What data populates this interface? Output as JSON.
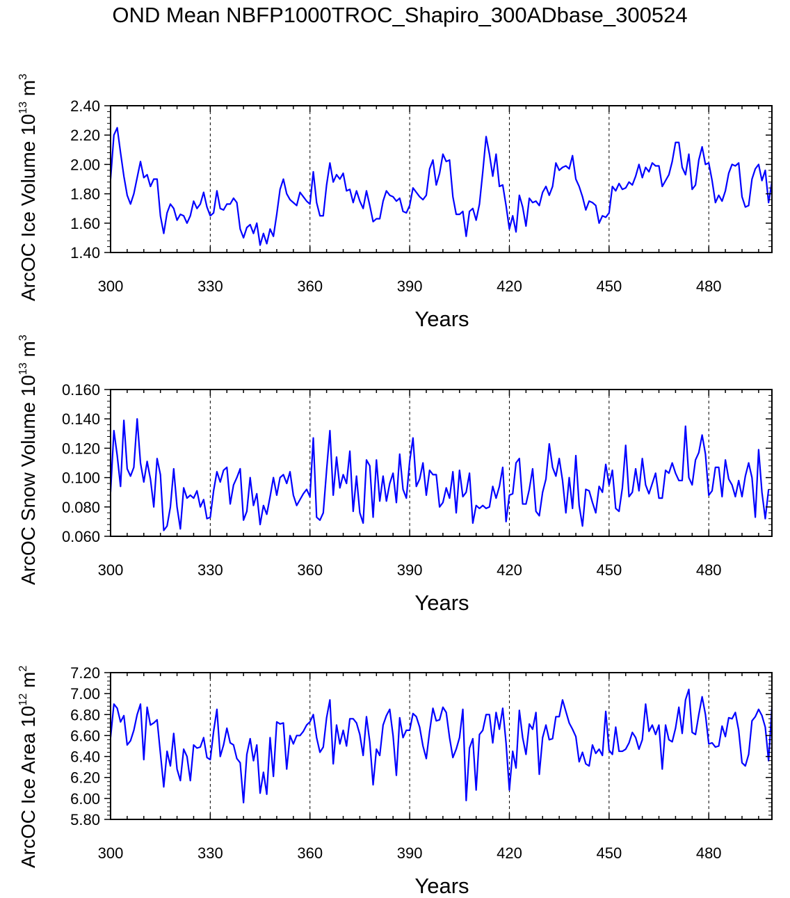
{
  "title": "OND Mean NBFP1000TROC_Shapiro_300ADbase_300524",
  "line_color": "#0000ff",
  "chart_data": [
    {
      "type": "line",
      "name": "ice-volume",
      "ylabel_main": "ArcOC Ice Volume 10",
      "ylabel_exp": "13",
      "ylabel_unit": " m",
      "ylabel_unit_exp": "3",
      "xlabel": "Years",
      "xlim": [
        300,
        499
      ],
      "ylim": [
        1.4,
        2.4
      ],
      "xticks": [
        "300",
        "330",
        "360",
        "390",
        "420",
        "450",
        "480"
      ],
      "yticks": [
        "1.40",
        "1.60",
        "1.80",
        "2.00",
        "2.20",
        "2.40"
      ],
      "x_start": 300,
      "values": [
        1.9,
        2.2,
        2.25,
        2.08,
        1.92,
        1.79,
        1.73,
        1.8,
        1.91,
        2.02,
        1.91,
        1.93,
        1.85,
        1.9,
        1.9,
        1.65,
        1.53,
        1.67,
        1.73,
        1.7,
        1.62,
        1.66,
        1.65,
        1.6,
        1.65,
        1.75,
        1.7,
        1.73,
        1.81,
        1.71,
        1.65,
        1.67,
        1.82,
        1.7,
        1.69,
        1.73,
        1.73,
        1.77,
        1.74,
        1.56,
        1.5,
        1.57,
        1.59,
        1.53,
        1.6,
        1.45,
        1.53,
        1.46,
        1.56,
        1.51,
        1.66,
        1.83,
        1.9,
        1.8,
        1.76,
        1.74,
        1.72,
        1.81,
        1.78,
        1.75,
        1.73,
        1.95,
        1.74,
        1.65,
        1.65,
        1.86,
        2.01,
        1.88,
        1.93,
        1.9,
        1.94,
        1.82,
        1.83,
        1.74,
        1.82,
        1.75,
        1.7,
        1.82,
        1.72,
        1.61,
        1.63,
        1.63,
        1.75,
        1.82,
        1.79,
        1.78,
        1.75,
        1.77,
        1.68,
        1.67,
        1.72,
        1.84,
        1.81,
        1.78,
        1.76,
        1.79,
        1.97,
        2.03,
        1.86,
        1.94,
        2.07,
        2.02,
        2.03,
        1.78,
        1.66,
        1.66,
        1.68,
        1.51,
        1.68,
        1.7,
        1.62,
        1.73,
        1.95,
        2.19,
        2.07,
        1.92,
        2.07,
        1.85,
        1.86,
        1.72,
        1.56,
        1.65,
        1.54,
        1.79,
        1.71,
        1.58,
        1.77,
        1.74,
        1.75,
        1.72,
        1.81,
        1.85,
        1.79,
        1.85,
        2.01,
        1.96,
        1.98,
        1.99,
        1.97,
        2.06,
        1.9,
        1.85,
        1.78,
        1.69,
        1.75,
        1.74,
        1.72,
        1.6,
        1.65,
        1.64,
        1.67,
        1.85,
        1.82,
        1.87,
        1.83,
        1.84,
        1.88,
        1.86,
        1.92,
        2.0,
        1.91,
        1.98,
        1.95,
        2.01,
        1.99,
        1.99,
        1.85,
        1.89,
        1.93,
        2.02,
        2.15,
        2.15,
        1.98,
        1.93,
        2.07,
        1.83,
        1.86,
        2.03,
        2.12,
        2.0,
        2.01,
        1.89,
        1.74,
        1.79,
        1.75,
        1.82,
        1.94,
        2.0,
        1.99,
        2.01,
        1.78,
        1.71,
        1.72,
        1.9,
        1.97,
        2.0,
        1.89,
        1.96,
        1.74,
        1.88
      ]
    },
    {
      "type": "line",
      "name": "snow-volume",
      "ylabel_main": "ArcOC Snow Volume 10",
      "ylabel_exp": "13",
      "ylabel_unit": " m",
      "ylabel_unit_exp": "3",
      "xlabel": "Years",
      "xlim": [
        300,
        499
      ],
      "ylim": [
        0.06,
        0.16
      ],
      "xticks": [
        "300",
        "330",
        "360",
        "390",
        "420",
        "450",
        "480"
      ],
      "yticks": [
        "0.060",
        "0.080",
        "0.100",
        "0.120",
        "0.140",
        "0.160"
      ],
      "x_start": 300,
      "values": [
        0.09,
        0.132,
        0.115,
        0.094,
        0.139,
        0.106,
        0.101,
        0.107,
        0.14,
        0.11,
        0.097,
        0.111,
        0.099,
        0.08,
        0.113,
        0.102,
        0.064,
        0.067,
        0.08,
        0.106,
        0.08,
        0.065,
        0.093,
        0.086,
        0.088,
        0.086,
        0.091,
        0.08,
        0.085,
        0.072,
        0.073,
        0.091,
        0.104,
        0.097,
        0.105,
        0.107,
        0.082,
        0.095,
        0.1,
        0.106,
        0.071,
        0.077,
        0.1,
        0.081,
        0.089,
        0.068,
        0.081,
        0.075,
        0.087,
        0.1,
        0.088,
        0.1,
        0.102,
        0.096,
        0.104,
        0.088,
        0.081,
        0.085,
        0.089,
        0.092,
        0.087,
        0.127,
        0.073,
        0.071,
        0.076,
        0.105,
        0.132,
        0.088,
        0.114,
        0.093,
        0.102,
        0.096,
        0.118,
        0.077,
        0.101,
        0.076,
        0.069,
        0.112,
        0.108,
        0.073,
        0.112,
        0.084,
        0.101,
        0.084,
        0.096,
        0.103,
        0.083,
        0.116,
        0.092,
        0.086,
        0.111,
        0.127,
        0.094,
        0.099,
        0.11,
        0.088,
        0.105,
        0.102,
        0.102,
        0.08,
        0.083,
        0.093,
        0.086,
        0.104,
        0.076,
        0.105,
        0.087,
        0.09,
        0.103,
        0.069,
        0.081,
        0.079,
        0.081,
        0.079,
        0.08,
        0.094,
        0.086,
        0.094,
        0.107,
        0.07,
        0.088,
        0.089,
        0.11,
        0.113,
        0.082,
        0.082,
        0.092,
        0.106,
        0.077,
        0.074,
        0.09,
        0.099,
        0.123,
        0.107,
        0.101,
        0.113,
        0.098,
        0.076,
        0.1,
        0.079,
        0.115,
        0.081,
        0.067,
        0.092,
        0.091,
        0.083,
        0.076,
        0.094,
        0.09,
        0.109,
        0.095,
        0.105,
        0.079,
        0.077,
        0.093,
        0.122,
        0.087,
        0.09,
        0.106,
        0.091,
        0.113,
        0.095,
        0.089,
        0.096,
        0.103,
        0.086,
        0.086,
        0.105,
        0.103,
        0.11,
        0.103,
        0.098,
        0.098,
        0.135,
        0.1,
        0.095,
        0.112,
        0.117,
        0.129,
        0.116,
        0.088,
        0.091,
        0.107,
        0.107,
        0.087,
        0.112,
        0.099,
        0.095,
        0.087,
        0.098,
        0.087,
        0.101,
        0.11,
        0.1,
        0.073,
        0.119,
        0.09,
        0.072,
        0.092
      ]
    },
    {
      "type": "line",
      "name": "ice-area",
      "ylabel_main": "ArcOC Ice Area 10",
      "ylabel_exp": "12",
      "ylabel_unit": " m",
      "ylabel_unit_exp": "2",
      "xlabel": "Years",
      "xlim": [
        300,
        499
      ],
      "ylim": [
        5.8,
        7.2
      ],
      "xticks": [
        "300",
        "330",
        "360",
        "390",
        "420",
        "450",
        "480"
      ],
      "yticks": [
        "5.80",
        "6.00",
        "6.20",
        "6.40",
        "6.60",
        "6.80",
        "7.00",
        "7.20"
      ],
      "x_start": 300,
      "values": [
        6.58,
        6.9,
        6.86,
        6.73,
        6.79,
        6.51,
        6.55,
        6.65,
        6.8,
        6.9,
        6.37,
        6.87,
        6.7,
        6.72,
        6.75,
        6.43,
        6.11,
        6.45,
        6.31,
        6.62,
        6.28,
        6.17,
        6.47,
        6.4,
        6.17,
        6.51,
        6.48,
        6.49,
        6.58,
        6.39,
        6.37,
        6.64,
        6.85,
        6.4,
        6.51,
        6.67,
        6.53,
        6.51,
        6.38,
        6.34,
        5.96,
        6.42,
        6.57,
        6.36,
        6.51,
        6.05,
        6.25,
        6.04,
        6.58,
        6.21,
        6.73,
        6.71,
        6.72,
        6.28,
        6.6,
        6.52,
        6.6,
        6.6,
        6.64,
        6.7,
        6.73,
        6.8,
        6.58,
        6.44,
        6.49,
        6.77,
        6.94,
        6.33,
        6.7,
        6.52,
        6.65,
        6.5,
        6.76,
        6.76,
        6.72,
        6.61,
        6.41,
        6.78,
        6.54,
        6.13,
        6.47,
        6.41,
        6.7,
        6.79,
        6.85,
        6.6,
        6.22,
        6.77,
        6.58,
        6.65,
        6.65,
        6.81,
        6.78,
        6.68,
        6.5,
        6.38,
        6.64,
        6.86,
        6.74,
        6.75,
        6.87,
        6.82,
        6.58,
        6.39,
        6.47,
        6.58,
        6.85,
        5.98,
        6.48,
        6.57,
        6.08,
        6.61,
        6.65,
        6.8,
        6.8,
        6.53,
        6.82,
        6.66,
        6.86,
        6.53,
        6.08,
        6.45,
        6.29,
        6.84,
        6.58,
        6.42,
        6.71,
        6.66,
        6.82,
        6.23,
        6.58,
        6.7,
        6.56,
        6.57,
        6.78,
        6.78,
        6.94,
        6.83,
        6.72,
        6.66,
        6.59,
        6.35,
        6.44,
        6.33,
        6.31,
        6.51,
        6.43,
        6.47,
        6.41,
        6.83,
        6.46,
        6.42,
        6.68,
        6.45,
        6.45,
        6.47,
        6.53,
        6.63,
        6.58,
        6.47,
        6.56,
        6.9,
        6.64,
        6.7,
        6.61,
        6.7,
        6.28,
        6.7,
        6.56,
        6.54,
        6.67,
        6.87,
        6.62,
        6.94,
        7.04,
        6.63,
        6.61,
        6.8,
        6.97,
        6.8,
        6.52,
        6.53,
        6.49,
        6.5,
        6.69,
        6.59,
        6.77,
        6.76,
        6.82,
        6.65,
        6.34,
        6.31,
        6.42,
        6.74,
        6.78,
        6.85,
        6.79,
        6.68,
        6.36,
        6.87
      ]
    }
  ]
}
